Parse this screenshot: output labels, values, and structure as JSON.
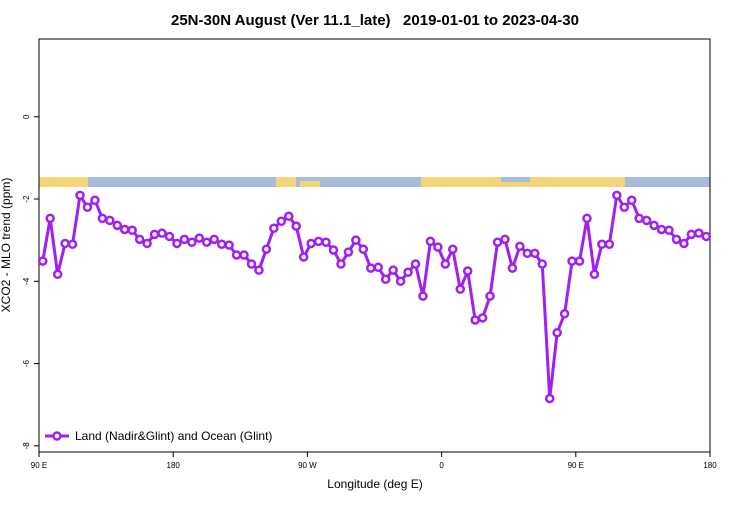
{
  "chart_data": {
    "type": "line",
    "title": "25N-30N August (Ver 11.1_late)   2019-01-01 to 2023-04-30",
    "x_label": "Longitude (deg E)",
    "y_label": "XCO2 - MLO trend (ppm)",
    "xlim": [
      90,
      540
    ],
    "xticks": [
      {
        "value": 90,
        "label": "90 E"
      },
      180,
      {
        "value": 270,
        "label": "90 W"
      },
      {
        "value": 360,
        "label": "0"
      },
      {
        "value": 450,
        "label": "90 E"
      },
      {
        "value": 540,
        "label": "180"
      }
    ],
    "ylim": [
      -8.15,
      1.89
    ],
    "yticks": [
      0,
      -2,
      -4,
      -6,
      -8
    ],
    "legend_position": "bottom-left",
    "x": [
      92.5,
      97.5,
      102.5,
      107.5,
      112.5,
      117.5,
      122.5,
      127.5,
      132.5,
      137.5,
      142.5,
      147.5,
      152.5,
      157.5,
      162.5,
      167.5,
      172.5,
      177.5,
      182.5,
      187.5,
      192.5,
      197.5,
      202.5,
      207.5,
      212.5,
      217.5,
      222.5,
      227.5,
      232.5,
      237.5,
      242.5,
      247.5,
      252.5,
      257.5,
      262.5,
      267.5,
      272.5,
      277.5,
      282.5,
      287.5,
      292.5,
      297.5,
      302.5,
      307.5,
      312.5,
      317.5,
      322.5,
      327.5,
      332.5,
      337.5,
      342.5,
      347.5,
      352.5,
      357.5,
      362.5,
      367.5,
      372.5,
      377.5,
      382.5,
      387.5,
      392.5,
      397.5,
      402.5,
      407.5,
      412.5,
      417.5,
      422.5,
      427.5,
      432.5,
      437.5,
      442.5,
      447.5,
      452.5,
      457.5,
      462.5,
      467.5,
      472.5,
      477.5,
      482.5,
      487.5,
      492.5,
      497.5,
      502.5,
      507.5,
      512.5,
      517.5,
      522.5,
      527.5,
      532.5,
      537.5
    ],
    "series": [
      {
        "name": "Land (Nadir&Glint) and Ocean (Glint)",
        "color": "#a020f0",
        "values": [
          -3.51,
          -2.47,
          -3.83,
          -3.08,
          -3.1,
          -1.91,
          -2.2,
          -2.03,
          -2.47,
          -2.52,
          -2.64,
          -2.74,
          -2.76,
          -2.98,
          -3.08,
          -2.86,
          -2.83,
          -2.91,
          -3.08,
          -2.98,
          -3.05,
          -2.95,
          -3.05,
          -2.98,
          -3.1,
          -3.12,
          -3.36,
          -3.36,
          -3.58,
          -3.73,
          -3.22,
          -2.71,
          -2.54,
          -2.42,
          -2.66,
          -3.41,
          -3.08,
          -3.03,
          -3.05,
          -3.24,
          -3.58,
          -3.29,
          -3.0,
          -3.22,
          -3.68,
          -3.66,
          -3.95,
          -3.73,
          -4.0,
          -3.78,
          -3.58,
          -4.36,
          -3.03,
          -3.17,
          -3.58,
          -3.22,
          -4.19,
          -3.75,
          -4.94,
          -4.89,
          -4.36,
          -3.05,
          -2.98,
          -3.68,
          -3.15,
          -3.32,
          -3.32,
          -3.58,
          -6.85,
          -5.25,
          -4.79,
          -3.51,
          -3.51,
          -2.47,
          -3.83,
          -3.1,
          -3.1,
          -1.91,
          -2.2,
          -2.03,
          -2.47,
          -2.52,
          -2.64,
          -2.74,
          -2.76,
          -2.98,
          -3.08,
          -2.86,
          -2.83,
          -2.91
        ]
      }
    ]
  }
}
